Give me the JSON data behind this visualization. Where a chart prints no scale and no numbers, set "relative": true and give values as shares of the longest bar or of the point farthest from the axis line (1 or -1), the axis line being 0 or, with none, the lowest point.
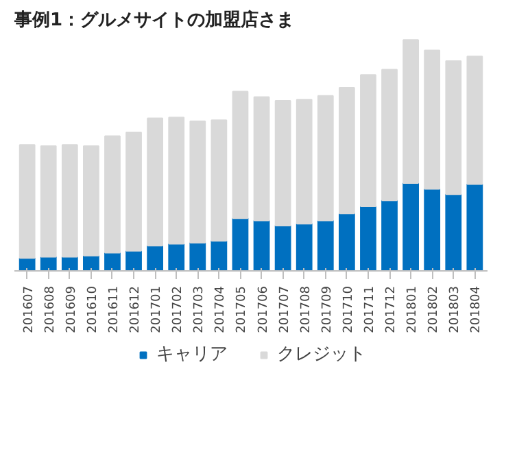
{
  "chart_data": {
    "type": "bar",
    "title": "事例1：グルメサイトの加盟店さま",
    "categories": [
      "201607",
      "201608",
      "201609",
      "201610",
      "201611",
      "201612",
      "201701",
      "201702",
      "201703",
      "201704",
      "201705",
      "201706",
      "201707",
      "201708",
      "201709",
      "201710",
      "201711",
      "201712",
      "201801",
      "201802",
      "201803",
      "201804"
    ],
    "stacked": true,
    "relative": true,
    "legend": "bottom",
    "series": [
      {
        "name": "キャリア",
        "color": "#0070c0",
        "values": [
          0.056,
          0.061,
          0.061,
          0.066,
          0.079,
          0.087,
          0.109,
          0.117,
          0.122,
          0.13,
          0.228,
          0.218,
          0.196,
          0.204,
          0.218,
          0.249,
          0.279,
          0.305,
          0.38,
          0.355,
          0.332,
          0.376
        ]
      },
      {
        "name": "クレジット",
        "color": "#d9d9d9",
        "values": [
          0.49,
          0.48,
          0.485,
          0.475,
          0.505,
          0.513,
          0.552,
          0.548,
          0.526,
          0.523,
          0.549,
          0.535,
          0.541,
          0.538,
          0.54,
          0.544,
          0.57,
          0.567,
          0.62,
          0.6,
          0.577,
          0.553
        ]
      }
    ]
  }
}
